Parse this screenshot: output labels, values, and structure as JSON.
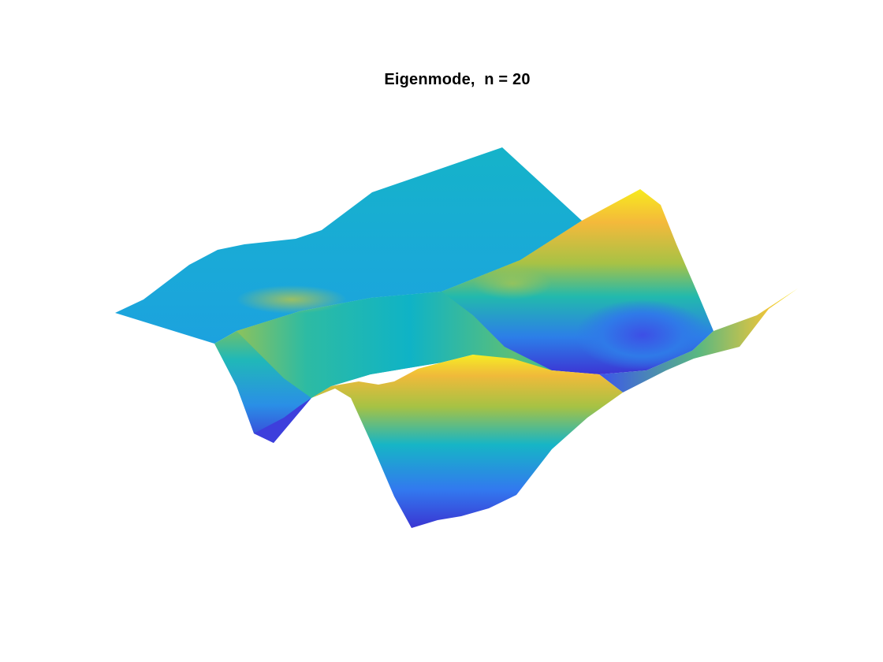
{
  "figure": {
    "title": "Eigenmode,  n = 20",
    "plot_type": "3d-surface",
    "colormap": "parula",
    "axes_visible": false,
    "grid": false,
    "background_color": "#ffffff",
    "colormap_stops": [
      "#3e26a8",
      "#4760f2",
      "#2e8ce6",
      "#0eb0cb",
      "#2fbd93",
      "#93c14d",
      "#e7b82f",
      "#fcc63b",
      "#f9fb15"
    ]
  }
}
